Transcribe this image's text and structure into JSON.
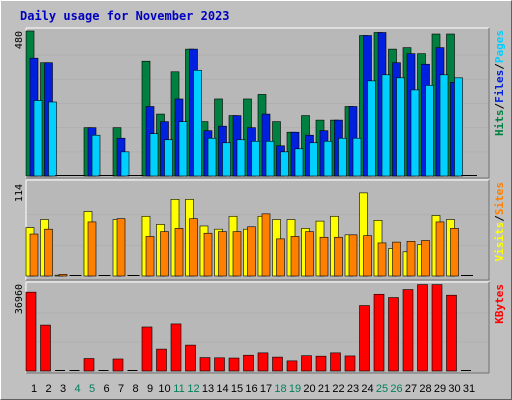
{
  "chart_data": [
    {
      "type": "bar",
      "title": "Daily usage for November 2023",
      "categories": [
        "1",
        "2",
        "3",
        "4",
        "5",
        "6",
        "7",
        "8",
        "9",
        "10",
        "11",
        "12",
        "13",
        "14",
        "15",
        "16",
        "17",
        "18",
        "19",
        "20",
        "21",
        "22",
        "23",
        "24",
        "25",
        "26",
        "27",
        "28",
        "29",
        "30",
        "31"
      ],
      "weekend_days": [
        "4",
        "5",
        "11",
        "12",
        "18",
        "19",
        "25",
        "26"
      ],
      "ytick_labels": [
        "480"
      ],
      "ylim": [
        0,
        480
      ],
      "right_labels": [
        "Hits",
        "Files",
        "Pages"
      ],
      "series": [
        {
          "name": "Hits",
          "color": "#008040",
          "values": [
            480,
            375,
            0,
            0,
            160,
            0,
            160,
            0,
            380,
            205,
            345,
            420,
            180,
            255,
            200,
            255,
            270,
            180,
            145,
            200,
            185,
            185,
            230,
            465,
            475,
            420,
            425,
            405,
            470,
            470,
            0
          ]
        },
        {
          "name": "Files",
          "color": "#0020e0",
          "values": [
            390,
            375,
            0,
            0,
            160,
            0,
            125,
            0,
            230,
            180,
            255,
            420,
            150,
            165,
            200,
            160,
            205,
            100,
            145,
            135,
            150,
            185,
            230,
            465,
            475,
            375,
            405,
            370,
            425,
            310,
            0
          ]
        },
        {
          "name": "Pages",
          "color": "#00d0ff",
          "values": [
            250,
            245,
            0,
            0,
            135,
            0,
            80,
            0,
            140,
            120,
            180,
            350,
            125,
            110,
            120,
            115,
            115,
            80,
            90,
            110,
            115,
            125,
            125,
            315,
            335,
            325,
            285,
            300,
            335,
            325,
            0
          ]
        }
      ]
    },
    {
      "type": "bar",
      "categories": [
        "1",
        "2",
        "3",
        "4",
        "5",
        "6",
        "7",
        "8",
        "9",
        "10",
        "11",
        "12",
        "13",
        "14",
        "15",
        "16",
        "17",
        "18",
        "19",
        "20",
        "21",
        "22",
        "23",
        "24",
        "25",
        "26",
        "27",
        "28",
        "29",
        "30",
        "31"
      ],
      "ytick_labels": [
        "114"
      ],
      "ylim": [
        0,
        114
      ],
      "right_labels": [
        "Visits",
        "Sites"
      ],
      "series": [
        {
          "name": "Visits",
          "color": "#ffff00",
          "values": [
            60,
            70,
            1,
            0,
            80,
            0,
            70,
            0,
            74,
            64,
            95,
            95,
            62,
            58,
            74,
            58,
            74,
            70,
            70,
            59,
            68,
            74,
            51,
            103,
            69,
            34,
            30,
            39,
            75,
            70,
            0
          ]
        },
        {
          "name": "Sites",
          "color": "#ff8000",
          "values": [
            52,
            58,
            2,
            0,
            67,
            0,
            71,
            0,
            49,
            55,
            59,
            71,
            53,
            55,
            55,
            61,
            77,
            46,
            49,
            55,
            48,
            48,
            51,
            50,
            41,
            42,
            43,
            44,
            67,
            59,
            0
          ]
        }
      ]
    },
    {
      "type": "bar",
      "categories": [
        "1",
        "2",
        "3",
        "4",
        "5",
        "6",
        "7",
        "8",
        "9",
        "10",
        "11",
        "12",
        "13",
        "14",
        "15",
        "16",
        "17",
        "18",
        "19",
        "20",
        "21",
        "22",
        "23",
        "24",
        "25",
        "26",
        "27",
        "28",
        "29",
        "30",
        "31"
      ],
      "ytick_labels": [
        "36960"
      ],
      "ylim": [
        0,
        36960
      ],
      "right_labels": [
        "KBytes"
      ],
      "series": [
        {
          "name": "KBytes",
          "color": "#ff0000",
          "values": [
            33500,
            19500,
            0,
            0,
            5300,
            0,
            5100,
            0,
            18700,
            9300,
            20000,
            11000,
            5700,
            5600,
            5500,
            6700,
            7700,
            5900,
            4300,
            6500,
            6300,
            7700,
            6400,
            27800,
            32600,
            31200,
            34600,
            36700,
            36700,
            32200,
            0
          ]
        }
      ]
    }
  ],
  "colors": {
    "background": "#c0c0c0",
    "panel": "#b8b8b8",
    "grid": "#b0b0b0",
    "title": "#0000c0",
    "weekday_label": "#000000",
    "weekend_label": "#00805c",
    "slash": "#000000"
  }
}
